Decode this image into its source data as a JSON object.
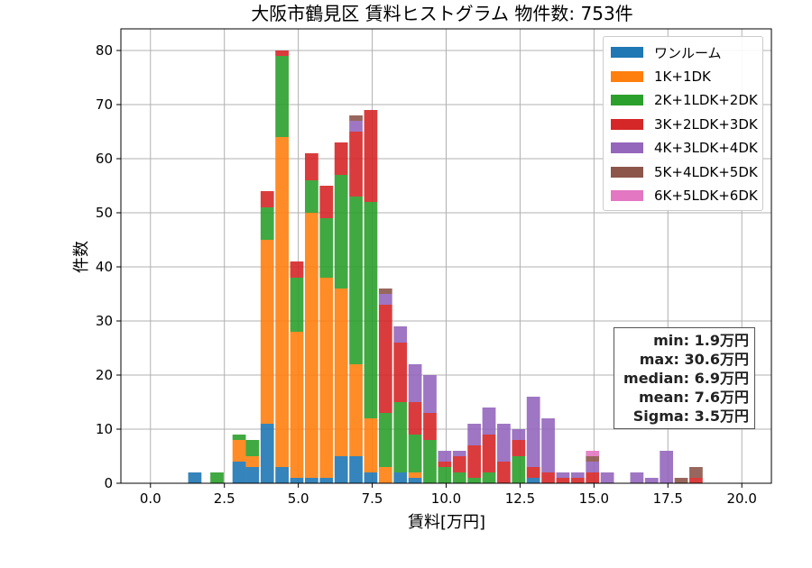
{
  "chart_data": {
    "type": "bar",
    "stacked": true,
    "title": "大阪市鶴見区 賃料ヒストグラム 物件数: 753件",
    "xlabel": "賃料[万円]",
    "ylabel": "件数",
    "xlim": [
      -1,
      21
    ],
    "ylim": [
      0,
      84
    ],
    "xticks": [
      0.0,
      2.5,
      5.0,
      7.5,
      10.0,
      12.5,
      15.0,
      17.5,
      20.0
    ],
    "xtick_labels": [
      "0.0",
      "2.5",
      "5.0",
      "7.5",
      "10.0",
      "12.5",
      "15.0",
      "17.5",
      "20.0"
    ],
    "yticks": [
      0,
      10,
      20,
      30,
      40,
      50,
      60,
      70,
      80
    ],
    "ytick_labels": [
      "0",
      "10",
      "20",
      "30",
      "40",
      "50",
      "60",
      "70",
      "80"
    ],
    "grid": true,
    "legend_position": "top-right",
    "bin_width": 0.5,
    "bins": [
      1.5,
      2.25,
      3.0,
      3.45,
      3.95,
      4.45,
      4.95,
      5.45,
      5.95,
      6.45,
      6.95,
      7.45,
      7.95,
      8.45,
      8.95,
      9.45,
      9.95,
      10.45,
      10.95,
      11.45,
      11.95,
      12.45,
      12.95,
      13.45,
      13.95,
      14.45,
      14.95,
      15.45,
      16.45,
      16.95,
      17.45,
      17.95,
      18.45
    ],
    "series": [
      {
        "name": "ワンルーム",
        "color": "#1f77b4",
        "values": [
          2,
          0,
          4,
          3,
          11,
          3,
          1,
          1,
          1,
          5,
          5,
          2,
          0,
          2,
          1,
          0,
          0,
          0,
          0,
          0,
          0,
          0,
          1,
          0,
          0,
          0,
          0,
          0,
          0,
          0,
          0,
          0,
          0
        ]
      },
      {
        "name": "1K+1DK",
        "color": "#ff7f0e",
        "values": [
          0,
          0,
          4,
          2,
          34,
          61,
          27,
          49,
          37,
          31,
          17,
          10,
          3,
          0,
          1,
          0,
          0,
          0,
          0,
          0,
          0,
          0,
          0,
          0,
          0,
          0,
          0,
          0,
          0,
          0,
          0,
          0,
          0
        ]
      },
      {
        "name": "2K+1LDK+2DK",
        "color": "#2ca02c",
        "values": [
          0,
          2,
          1,
          3,
          6,
          15,
          10,
          6,
          11,
          21,
          31,
          40,
          10,
          13,
          7,
          8,
          3,
          2,
          1,
          2,
          0,
          5,
          0,
          0,
          0,
          0,
          0,
          0,
          0,
          0,
          0,
          0,
          0
        ]
      },
      {
        "name": "3K+2LDK+3DK",
        "color": "#d62728",
        "values": [
          0,
          0,
          0,
          0,
          3,
          1,
          3,
          5,
          6,
          6,
          12,
          17,
          20,
          11,
          6,
          5,
          1,
          3,
          6,
          7,
          4,
          3,
          2,
          2,
          1,
          1,
          2,
          0,
          0,
          0,
          0,
          0,
          1
        ]
      },
      {
        "name": "4K+3LDK+4DK",
        "color": "#9467bd",
        "values": [
          0,
          0,
          0,
          0,
          0,
          0,
          0,
          0,
          0,
          0,
          2,
          0,
          2,
          3,
          7,
          7,
          2,
          1,
          4,
          5,
          7,
          2,
          13,
          10,
          1,
          1,
          2,
          2,
          2,
          1,
          6,
          0,
          0
        ]
      },
      {
        "name": "5K+4LDK+5DK",
        "color": "#8c564b",
        "values": [
          0,
          0,
          0,
          0,
          0,
          0,
          0,
          0,
          0,
          0,
          1,
          0,
          1,
          0,
          0,
          0,
          0,
          0,
          0,
          0,
          0,
          0,
          0,
          0,
          0,
          0,
          1,
          0,
          0,
          0,
          0,
          1,
          2
        ]
      },
      {
        "name": "6K+5LDK+6DK",
        "color": "#e377c2",
        "values": [
          0,
          0,
          0,
          0,
          0,
          0,
          0,
          0,
          0,
          0,
          0,
          0,
          0,
          0,
          0,
          0,
          0,
          0,
          0,
          0,
          0,
          0,
          0,
          0,
          0,
          0,
          1,
          0,
          0,
          0,
          0,
          0,
          0
        ]
      }
    ],
    "stats": {
      "min": "min: 1.9万円",
      "max": "max: 30.6万円",
      "median": "median: 6.9万円",
      "mean": "mean: 7.6万円",
      "sigma": "Sigma: 3.5万円"
    }
  }
}
